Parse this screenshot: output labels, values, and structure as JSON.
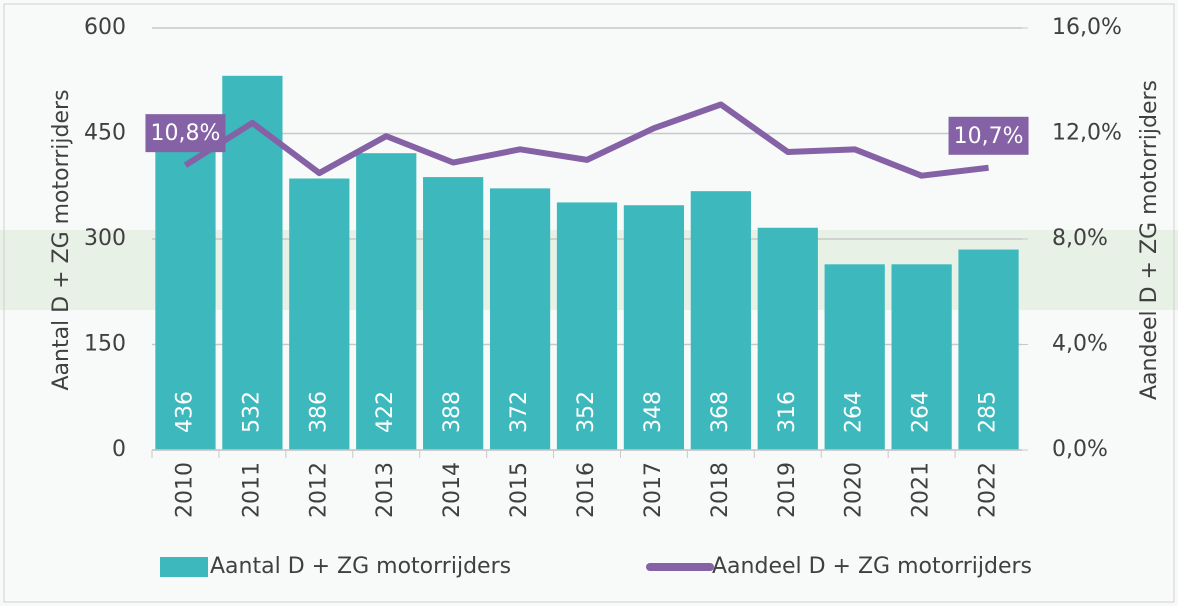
{
  "chart_data": {
    "type": "bar",
    "categories": [
      "2010",
      "2011",
      "2012",
      "2013",
      "2014",
      "2015",
      "2016",
      "2017",
      "2018",
      "2019",
      "2020",
      "2021",
      "2022"
    ],
    "y_label": "Aantal D + ZG motorrijders",
    "y2_label": "Aandeel D + ZG motorrijders",
    "ylim": [
      0,
      600
    ],
    "yticks": [
      0,
      150,
      300,
      450,
      600
    ],
    "y2lim": [
      0,
      16
    ],
    "y2ticks": [
      {
        "value": 0,
        "label": "0,0%"
      },
      {
        "value": 4,
        "label": "4,0%"
      },
      {
        "value": 8,
        "label": "8,0%"
      },
      {
        "value": 12,
        "label": "12,0%"
      },
      {
        "value": 16,
        "label": "16,0%"
      }
    ],
    "grid": true,
    "legend": "bottom",
    "series": [
      {
        "name": "Aantal D + ZG motorrijders",
        "type": "bar",
        "color": "#3db8bc",
        "values": [
          436,
          532,
          386,
          422,
          388,
          372,
          352,
          348,
          368,
          316,
          264,
          264,
          285
        ]
      },
      {
        "name": "Aandeel D + ZG motorrijders",
        "type": "line",
        "axis": "y2",
        "color": "#8561a5",
        "values": [
          10.8,
          12.4,
          10.5,
          11.9,
          10.9,
          11.4,
          11.0,
          12.2,
          13.1,
          11.3,
          11.4,
          10.4,
          10.7
        ],
        "value_labels": [
          "10,8%",
          null,
          null,
          null,
          null,
          null,
          null,
          null,
          null,
          null,
          null,
          null,
          "10,7%"
        ]
      }
    ]
  }
}
